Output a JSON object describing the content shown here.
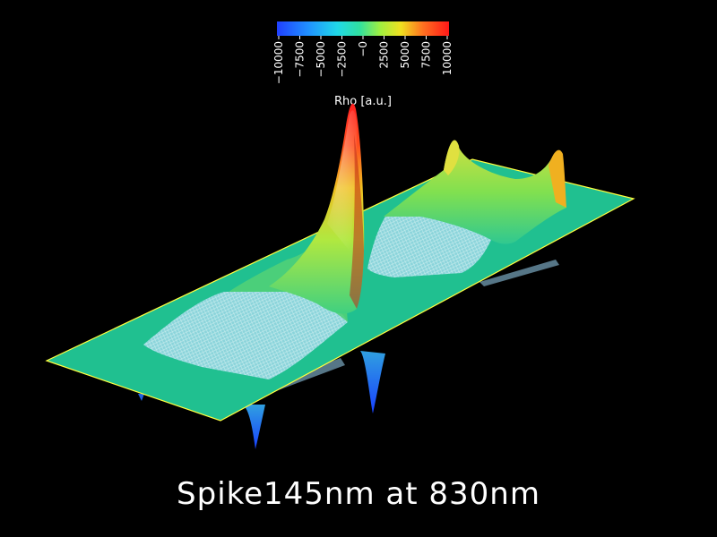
{
  "colorbar": {
    "title": "Rho [a.u.]",
    "ticks": [
      "−10000",
      "−7500",
      "−5000",
      "−2500",
      "−0",
      "2500",
      "5000",
      "7500",
      "10000"
    ],
    "range": [
      -10000,
      10000
    ],
    "colormap": "rainbow (blue to red)",
    "colors": [
      "#2040ff",
      "#20b0ff",
      "#20e0d0",
      "#40e080",
      "#b0f040",
      "#f0e020",
      "#ff8020",
      "#ff2020"
    ]
  },
  "surface": {
    "base_color": "#20c090",
    "edge_color": "#ffff40"
  },
  "caption": "Spike145nm at 830nm"
}
